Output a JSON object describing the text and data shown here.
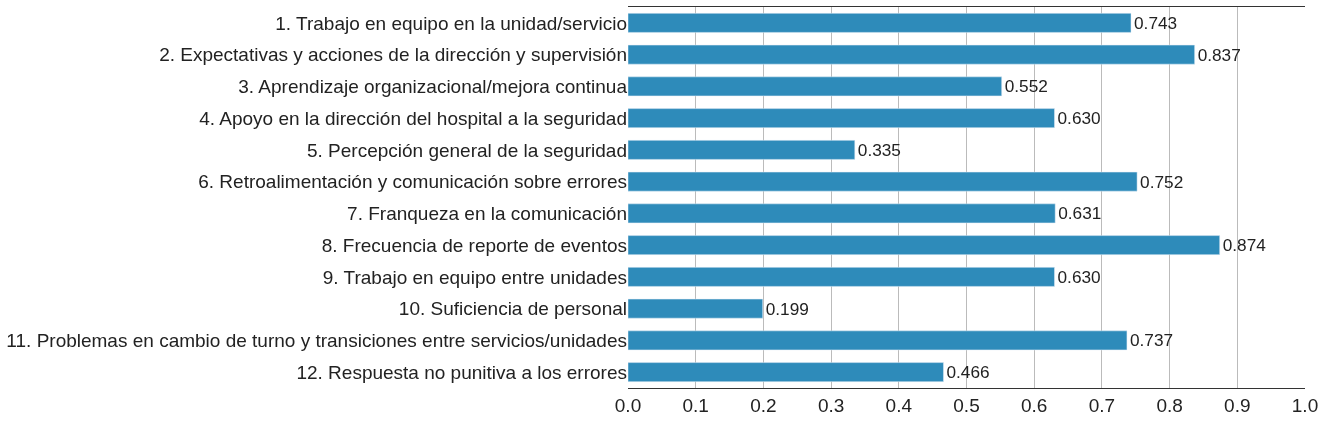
{
  "chart_data": {
    "type": "bar",
    "orientation": "horizontal",
    "categories": [
      "1. Trabajo en equipo en la unidad/servicio",
      "2. Expectativas y acciones de la dirección y supervisión",
      "3. Aprendizaje organizacional/mejora continua",
      "4. Apoyo en la dirección del hospital a la seguridad",
      "5. Percepción general de la seguridad",
      "6. Retroalimentación y comunicación sobre errores",
      "7. Franqueza en la comunicación",
      "8. Frecuencia de reporte de eventos",
      "9. Trabajo en equipo entre unidades",
      "10. Suficiencia de personal",
      "11. Problemas en cambio de turno y transiciones entre servicios/unidades",
      "12. Respuesta no punitiva a los errores"
    ],
    "values": [
      0.743,
      0.837,
      0.552,
      0.63,
      0.335,
      0.752,
      0.631,
      0.874,
      0.63,
      0.199,
      0.737,
      0.466
    ],
    "value_labels": [
      "0.743",
      "0.837",
      "0.552",
      "0.630",
      "0.335",
      "0.752",
      "0.631",
      "0.874",
      "0.630",
      "0.199",
      "0.737",
      "0.466"
    ],
    "color": "#2e8bba",
    "xlim": [
      0,
      1
    ],
    "xticks": [
      {
        "value": 0,
        "label": "0.0"
      },
      {
        "value": 0.1,
        "label": "0.1"
      },
      {
        "value": 0.2,
        "label": "0.2"
      },
      {
        "value": 0.3,
        "label": "0.3"
      },
      {
        "value": 0.4,
        "label": "0.4"
      },
      {
        "value": 0.5,
        "label": "0.5"
      },
      {
        "value": 0.6,
        "label": "0.6"
      },
      {
        "value": 0.7,
        "label": "0.7"
      },
      {
        "value": 0.8,
        "label": "0.8"
      },
      {
        "value": 0.9,
        "label": "0.9"
      },
      {
        "value": 1,
        "label": "1.0"
      }
    ],
    "grid": "x",
    "legend": false
  }
}
